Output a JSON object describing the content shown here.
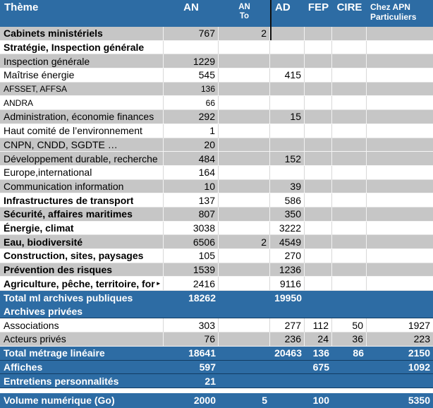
{
  "meta": {
    "truncation_marker": "►"
  },
  "colors": {
    "header_blue": "#2d6ca4",
    "row_gray": "#c6c6c6",
    "row_white": "#ffffff",
    "total_blue": "#2d6ca4",
    "header_text": "#ffffff",
    "body_text": "#000000",
    "divider_dark": "#123c63"
  },
  "table": {
    "columns": [
      {
        "id": "theme",
        "label": "Thème"
      },
      {
        "id": "an",
        "label": "AN"
      },
      {
        "id": "an_to",
        "label": "AN",
        "label2": "To"
      },
      {
        "id": "ad",
        "label": "AD"
      },
      {
        "id": "fep",
        "label": "FEP"
      },
      {
        "id": "cire",
        "label": "CIRE"
      },
      {
        "id": "apn",
        "label": "Chez APN",
        "label2": "Particuliers"
      }
    ],
    "rows": [
      {
        "theme": "Cabinets ministériels",
        "an": "767",
        "an_to": "2",
        "bg": "gray",
        "bold": true
      },
      {
        "theme": "Stratégie, Inspection générale",
        "bg": "white",
        "bold": true
      },
      {
        "theme": "Inspection générale",
        "an": "1229",
        "bg": "gray"
      },
      {
        "theme": "Maîtrise énergie",
        "an": "545",
        "ad": "415",
        "bg": "white"
      },
      {
        "theme": "AFSSET, AFFSA",
        "an": "136",
        "bg": "gray",
        "small": true
      },
      {
        "theme": "ANDRA",
        "an": "66",
        "bg": "white",
        "small": true
      },
      {
        "theme": "Administration, économie finances",
        "an": "292",
        "ad": "15",
        "bg": "gray"
      },
      {
        "theme": "Haut comité de l’environnement",
        "an": "1",
        "bg": "white"
      },
      {
        "theme": "CNPN, CNDD, SGDTE …",
        "an": "20",
        "bg": "gray"
      },
      {
        "theme": "Développement durable, recherche",
        "an": "484",
        "ad": "152",
        "bg": "gray"
      },
      {
        "theme": "Europe,international",
        "an": "164",
        "bg": "white"
      },
      {
        "theme": "Communication information",
        "an": "10",
        "ad": "39",
        "bg": "gray"
      },
      {
        "theme": "Infrastructures de transport",
        "an": "137",
        "ad": "586",
        "bg": "white",
        "bold": true
      },
      {
        "theme": "Sécurité, affaires maritimes",
        "an": "807",
        "ad": "350",
        "bg": "gray",
        "bold": true
      },
      {
        "theme": "Énergie, climat",
        "an": "3038",
        "ad": "3222",
        "bg": "white",
        "bold": true
      },
      {
        "theme": "Eau, biodiversité",
        "an": "6506",
        "an_to": "2",
        "ad": "4549",
        "bg": "gray",
        "bold": true
      },
      {
        "theme": "Construction, sites, paysages",
        "an": "105",
        "ad": "270",
        "bg": "white",
        "bold": true
      },
      {
        "theme": "Prévention des risques",
        "an": "1539",
        "ad": "1236",
        "bg": "gray",
        "bold": true
      },
      {
        "theme": "Agriculture, pêche, territoire, for",
        "truncated": true,
        "an": "2416",
        "ad": "9116",
        "bg": "white",
        "bold": true
      },
      {
        "type": "blue2",
        "line1": {
          "theme": "Total ml archives publiques",
          "an": "18262",
          "ad": "19950"
        },
        "line2": {
          "theme": "Archives privées"
        }
      },
      {
        "theme": "Associations",
        "an": "303",
        "ad": "277",
        "fep": "112",
        "cire": "50",
        "apn": "1927",
        "bg": "white"
      },
      {
        "theme": "Acteurs privés",
        "an": "76",
        "ad": "236",
        "fep": "24",
        "cire": "36",
        "apn": "223",
        "bg": "gray"
      },
      {
        "theme": "Total métrage linéaire",
        "an": "18641",
        "ad": "20463",
        "fep": "136",
        "cire": "86",
        "apn": "2150",
        "bg": "blue",
        "bold": true
      },
      {
        "theme": "Affiches",
        "an": "597",
        "fep": "675",
        "apn": "1092",
        "bg": "blue",
        "bold": true
      },
      {
        "theme": "Entretiens personnalités",
        "an": "21",
        "bg": "blue",
        "bold": true
      },
      {
        "type": "gap"
      },
      {
        "theme": "Volume numérique (Go)",
        "an": "2000",
        "an_to": "5",
        "fep": "100",
        "apn": "5350",
        "bg": "blue",
        "bold": true,
        "last": true
      }
    ]
  }
}
